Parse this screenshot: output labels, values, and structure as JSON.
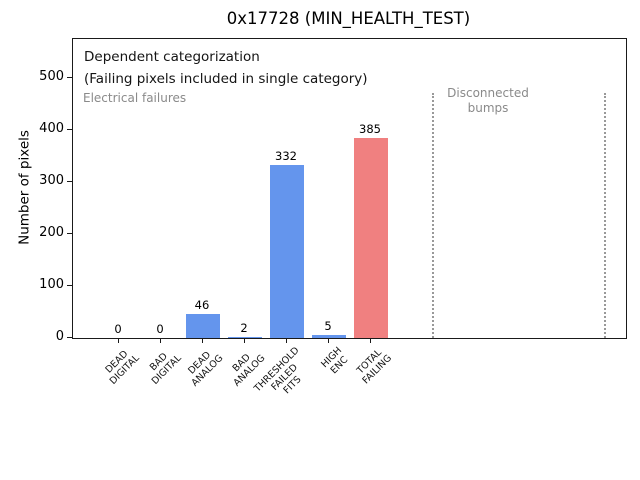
{
  "chart_data": {
    "type": "bar",
    "title": "0x17728 (MIN_HEALTH_TEST)",
    "ylabel": "Number of pixels",
    "xlabel": "",
    "categories": [
      [
        "DEAD",
        "DIGITAL"
      ],
      [
        "BAD",
        "DIGITAL"
      ],
      [
        "DEAD",
        "ANALOG"
      ],
      [
        "BAD",
        "ANALOG"
      ],
      [
        "THRESHOLD",
        "FAILED",
        "FITS"
      ],
      [
        "HIGH",
        "ENC"
      ],
      [
        "TOTAL",
        "FAILING"
      ]
    ],
    "values": [
      0,
      0,
      46,
      2,
      332,
      5,
      385
    ],
    "value_labels": [
      "0",
      "0",
      "46",
      "2",
      "332",
      "5",
      "385"
    ],
    "bar_colors": [
      "#6495ED",
      "#6495ED",
      "#6495ED",
      "#6495ED",
      "#6495ED",
      "#6495ED",
      "#F08080"
    ],
    "yticks": [
      0,
      100,
      200,
      300,
      400,
      500
    ],
    "ylim": [
      0,
      578
    ],
    "grid": false,
    "legend": "none",
    "annotations": {
      "dependent_line1": "Dependent categorization",
      "dependent_line2": "(Failing pixels included in single category)",
      "electrical_label": "Electrical failures",
      "disconnected_line1": "Disconnected",
      "disconnected_line2": "bumps"
    },
    "colors": {
      "electrical_bar": "#6495ED",
      "total_bar": "#F08080",
      "muted_text": "#8a8a8a",
      "divider_line": "#999999",
      "axis": "#1a1a1a"
    }
  }
}
